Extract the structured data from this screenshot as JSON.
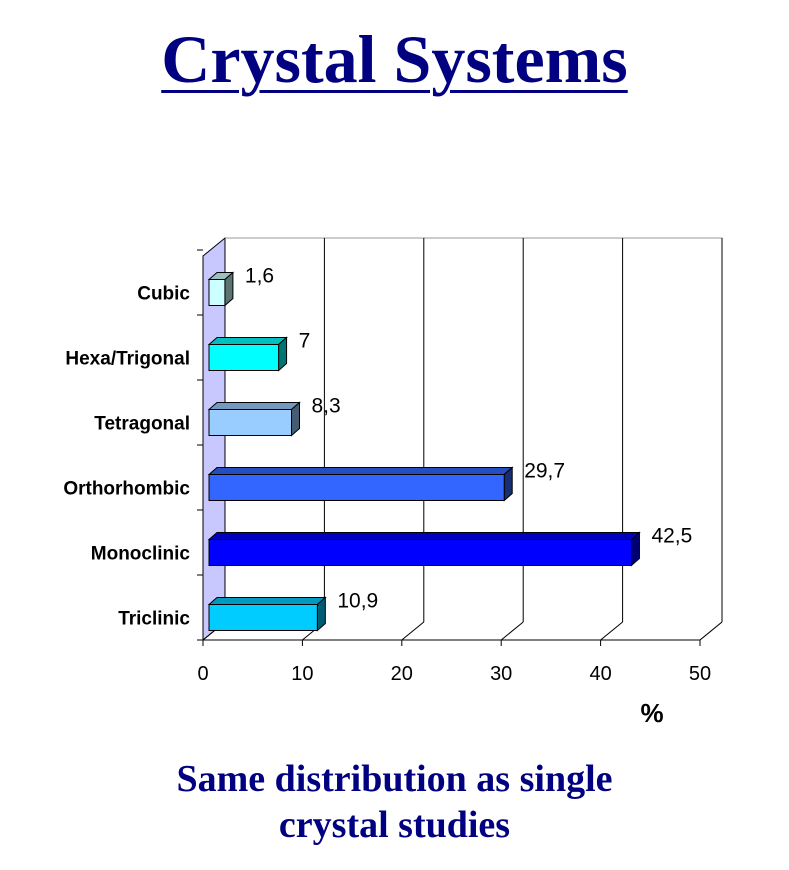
{
  "title": "Crystal Systems",
  "caption": {
    "line1": "Same distribution as single",
    "line2": "crystal studies"
  },
  "chart_data": {
    "type": "bar",
    "orientation": "horizontal",
    "style": "3d",
    "categories": [
      "Cubic",
      "Hexa/Trigonal",
      "Tetragonal",
      "Orthorhombic",
      "Monoclinic",
      "Triclinic"
    ],
    "values": [
      1.6,
      7,
      8.3,
      29.7,
      42.5,
      10.9
    ],
    "data_labels": [
      "1,6",
      "7",
      "8,3",
      "29,7",
      "42,5",
      "10,9"
    ],
    "bar_colors": [
      "#ccffff",
      "#00ffff",
      "#99ccff",
      "#3366ff",
      "#0000ff",
      "#00ccff"
    ],
    "x_ticks": [
      "0",
      "10",
      "20",
      "30",
      "40",
      "50"
    ],
    "xlabel": "%",
    "xlim": [
      0,
      50
    ],
    "grid": "vertical",
    "legend": "none"
  }
}
